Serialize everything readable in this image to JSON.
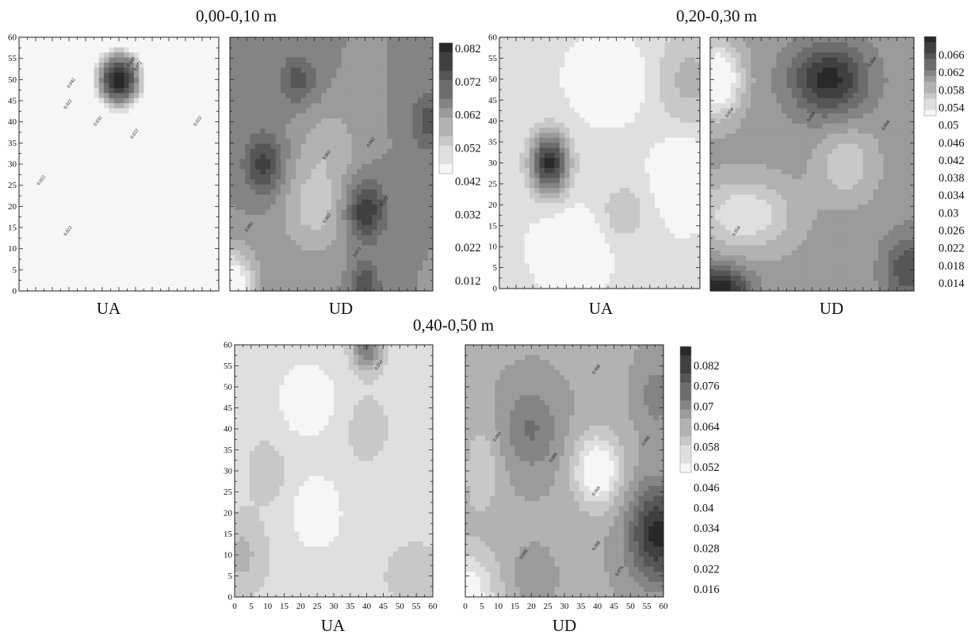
{
  "figure_titles": [
    "0,00-0,10 m",
    "0,20-0,30 m",
    "0,40-0,50 m"
  ],
  "chart_data": [
    {
      "type": "heatmap",
      "title": "0,00-0,10 m",
      "panels": [
        {
          "label": "UA",
          "xlim": [
            0,
            60
          ],
          "ylim": [
            0,
            60
          ],
          "yticks": [
            0,
            5,
            10,
            15,
            20,
            25,
            30,
            35,
            40,
            45,
            50,
            55,
            60
          ],
          "background": 0.02,
          "fields": [
            {
              "x": 30,
              "y": 50,
              "amp": 0.062,
              "sx": 6,
              "sy": 6
            },
            {
              "x": 5,
              "y": 18,
              "amp": 0.012,
              "sx": 9,
              "sy": 10
            },
            {
              "x": 55,
              "y": 50,
              "amp": 0.008,
              "sx": 8,
              "sy": 10
            },
            {
              "x": 40,
              "y": 18,
              "amp": -0.007,
              "sx": 11,
              "sy": 13
            }
          ],
          "contour_labels": [
            {
              "x": 36,
              "y": 53,
              "text": "0.072"
            },
            {
              "x": 16,
              "y": 49,
              "text": "0.042"
            },
            {
              "x": 34,
              "y": 54,
              "text": "0.042"
            },
            {
              "x": 15,
              "y": 44,
              "text": "0.022"
            },
            {
              "x": 24,
              "y": 40,
              "text": "0.032"
            },
            {
              "x": 35,
              "y": 37,
              "text": "0.022"
            },
            {
              "x": 54,
              "y": 40,
              "text": "0.022"
            },
            {
              "x": 7,
              "y": 26,
              "text": "0.022"
            },
            {
              "x": 15,
              "y": 14,
              "text": "0.022"
            }
          ]
        },
        {
          "label": "UD",
          "xlim": [
            0,
            60
          ],
          "ylim": [
            0,
            60
          ],
          "background": 0.062,
          "fields": [
            {
              "x": 10,
              "y": 30,
              "amp": 0.014,
              "sx": 4,
              "sy": 5
            },
            {
              "x": 40,
              "y": 19,
              "amp": 0.016,
              "sx": 4,
              "sy": 5
            },
            {
              "x": 40,
              "y": 1,
              "amp": 0.012,
              "sx": 3,
              "sy": 4
            },
            {
              "x": 20,
              "y": 50,
              "amp": 0.01,
              "sx": 4,
              "sy": 4
            },
            {
              "x": 59,
              "y": 40,
              "amp": 0.01,
              "sx": 4,
              "sy": 5
            },
            {
              "x": 0,
              "y": 1,
              "amp": -0.024,
              "sx": 5,
              "sy": 6
            },
            {
              "x": 25,
              "y": 20,
              "amp": -0.01,
              "sx": 7,
              "sy": 8
            },
            {
              "x": 30,
              "y": 35,
              "amp": -0.006,
              "sx": 6,
              "sy": 6
            }
          ],
          "contour_labels": [
            {
              "x": 29,
              "y": 32,
              "text": "0.062"
            },
            {
              "x": 42,
              "y": 35,
              "text": "0.062"
            },
            {
              "x": 6,
              "y": 15,
              "text": "0.062"
            },
            {
              "x": 29,
              "y": 17,
              "text": "0.062"
            },
            {
              "x": 46,
              "y": 21,
              "text": "0.072"
            },
            {
              "x": 38,
              "y": 9,
              "text": "0.072"
            }
          ]
        }
      ],
      "colorbar": {
        "ticks": [
          0.082,
          0.072,
          0.062,
          0.052,
          0.042,
          0.032,
          0.022,
          0.012
        ],
        "tick_labels": [
          "0.082",
          "0.072",
          "0.062",
          "0.052",
          "0.042",
          "0.032",
          "0.022",
          "0.012"
        ],
        "shaded_range": [
          0.042,
          0.082
        ]
      }
    },
    {
      "type": "heatmap",
      "title": "0,20-0,30 m",
      "panels": [
        {
          "label": "UA",
          "xlim": [
            0,
            60
          ],
          "ylim": [
            0,
            60
          ],
          "yticks": [
            0,
            5,
            10,
            15,
            20,
            25,
            30,
            35,
            40,
            45,
            50,
            55,
            60
          ],
          "background": 0.052,
          "fields": [
            {
              "x": 15,
              "y": 30,
              "amp": 0.015,
              "sx": 4,
              "sy": 5
            },
            {
              "x": 57,
              "y": 50,
              "amp": 0.004,
              "sx": 7,
              "sy": 9
            },
            {
              "x": 37,
              "y": 18,
              "amp": 0.003,
              "sx": 5,
              "sy": 5
            },
            {
              "x": 33,
              "y": 50,
              "amp": -0.004,
              "sx": 6,
              "sy": 5
            },
            {
              "x": 22,
              "y": 10,
              "amp": -0.004,
              "sx": 6,
              "sy": 5
            },
            {
              "x": 55,
              "y": 27,
              "amp": -0.004,
              "sx": 5,
              "sy": 6
            }
          ],
          "contour_labels": []
        },
        {
          "label": "UD",
          "xlim": [
            0,
            60
          ],
          "ylim": [
            0,
            60
          ],
          "background": 0.058,
          "fields": [
            {
              "x": 35,
              "y": 50,
              "amp": 0.009,
              "sx": 8,
              "sy": 6
            },
            {
              "x": 3,
              "y": 0,
              "amp": 0.01,
              "sx": 6,
              "sy": 4
            },
            {
              "x": 58,
              "y": 5,
              "amp": 0.006,
              "sx": 5,
              "sy": 6
            },
            {
              "x": 2,
              "y": 50,
              "amp": -0.01,
              "sx": 5,
              "sy": 6
            },
            {
              "x": 10,
              "y": 18,
              "amp": -0.006,
              "sx": 10,
              "sy": 6
            },
            {
              "x": 40,
              "y": 30,
              "amp": -0.004,
              "sx": 6,
              "sy": 6
            }
          ],
          "contour_labels": [
            {
              "x": 48,
              "y": 54,
              "text": "0.064"
            },
            {
              "x": 6,
              "y": 42,
              "text": "0.054"
            },
            {
              "x": 30,
              "y": 41,
              "text": "0.064"
            },
            {
              "x": 52,
              "y": 39,
              "text": "0.064"
            },
            {
              "x": 8,
              "y": 14,
              "text": "0.054"
            }
          ]
        }
      ],
      "colorbar": {
        "ticks": [
          0.066,
          0.062,
          0.058,
          0.054,
          0.05,
          0.046,
          0.042,
          0.038,
          0.034,
          0.03,
          0.026,
          0.022,
          0.018,
          0.014
        ],
        "tick_labels": [
          "0.066",
          "0.062",
          "0.058",
          "0.054",
          "0.05",
          "0.046",
          "0.042",
          "0.038",
          "0.034",
          "0.03",
          "0.026",
          "0.022",
          "0.018",
          "0.014"
        ],
        "shaded_range": [
          0.05,
          0.068
        ]
      }
    },
    {
      "type": "heatmap",
      "title": "0,40-0,50 m",
      "panels": [
        {
          "label": "UA",
          "xlim": [
            0,
            60
          ],
          "ylim": [
            0,
            60
          ],
          "xticks": [
            0,
            5,
            10,
            15,
            20,
            25,
            30,
            35,
            40,
            45,
            50,
            55,
            60
          ],
          "yticks": [
            0,
            5,
            10,
            15,
            20,
            25,
            30,
            35,
            40,
            45,
            50,
            55,
            60
          ],
          "background": 0.058,
          "fields": [
            {
              "x": 40,
              "y": 59,
              "amp": 0.016,
              "sx": 3,
              "sy": 3.5
            },
            {
              "x": 2,
              "y": 10,
              "amp": 0.006,
              "sx": 5,
              "sy": 6
            },
            {
              "x": 10,
              "y": 30,
              "amp": 0.004,
              "sx": 4,
              "sy": 5
            },
            {
              "x": 40,
              "y": 40,
              "amp": 0.004,
              "sx": 4,
              "sy": 5
            },
            {
              "x": 55,
              "y": 5,
              "amp": 0.004,
              "sx": 6,
              "sy": 5
            },
            {
              "x": 22,
              "y": 47,
              "amp": -0.005,
              "sx": 7,
              "sy": 7
            },
            {
              "x": 25,
              "y": 20,
              "amp": -0.005,
              "sx": 6,
              "sy": 7
            }
          ],
          "contour_labels": [
            {
              "x": 44,
              "y": 55,
              "text": "0.058"
            }
          ]
        },
        {
          "label": "UD",
          "xlim": [
            0,
            60
          ],
          "ylim": [
            0,
            60
          ],
          "xticks": [
            0,
            5,
            10,
            15,
            20,
            25,
            30,
            35,
            40,
            45,
            50,
            55,
            60
          ],
          "background": 0.066,
          "fields": [
            {
              "x": 20,
              "y": 40,
              "amp": 0.008,
              "sx": 6,
              "sy": 7
            },
            {
              "x": 58,
              "y": 15,
              "amp": 0.02,
              "sx": 6,
              "sy": 8
            },
            {
              "x": 58,
              "y": 48,
              "amp": 0.006,
              "sx": 4,
              "sy": 6
            },
            {
              "x": 40,
              "y": 30,
              "amp": -0.016,
              "sx": 5,
              "sy": 6
            },
            {
              "x": 0,
              "y": 0,
              "amp": -0.014,
              "sx": 7,
              "sy": 8
            },
            {
              "x": 5,
              "y": 30,
              "amp": -0.006,
              "sx": 4,
              "sy": 8
            },
            {
              "x": 20,
              "y": 5,
              "amp": 0.003,
              "sx": 4,
              "sy": 4
            }
          ],
          "contour_labels": [
            {
              "x": 40,
              "y": 54,
              "text": "0.068"
            },
            {
              "x": 10,
              "y": 38,
              "text": "0.066"
            },
            {
              "x": 27,
              "y": 33,
              "text": "0.066"
            },
            {
              "x": 40,
              "y": 25,
              "text": "0.066"
            },
            {
              "x": 55,
              "y": 37,
              "text": "0.066"
            },
            {
              "x": 40,
              "y": 12,
              "text": "0.066"
            },
            {
              "x": 18,
              "y": 10,
              "text": "0.066"
            },
            {
              "x": 47,
              "y": 6,
              "text": "0.076"
            }
          ]
        }
      ],
      "colorbar": {
        "ticks": [
          0.082,
          0.076,
          0.07,
          0.064,
          0.058,
          0.052,
          0.046,
          0.04,
          0.034,
          0.028,
          0.022,
          0.016
        ],
        "tick_labels": [
          "0.082",
          "0.076",
          "0.07",
          "0.064",
          "0.058",
          "0.052",
          "0.046",
          "0.04",
          "0.034",
          "0.028",
          "0.022",
          "0.016"
        ],
        "shaded_range": [
          0.052,
          0.088
        ]
      }
    }
  ]
}
